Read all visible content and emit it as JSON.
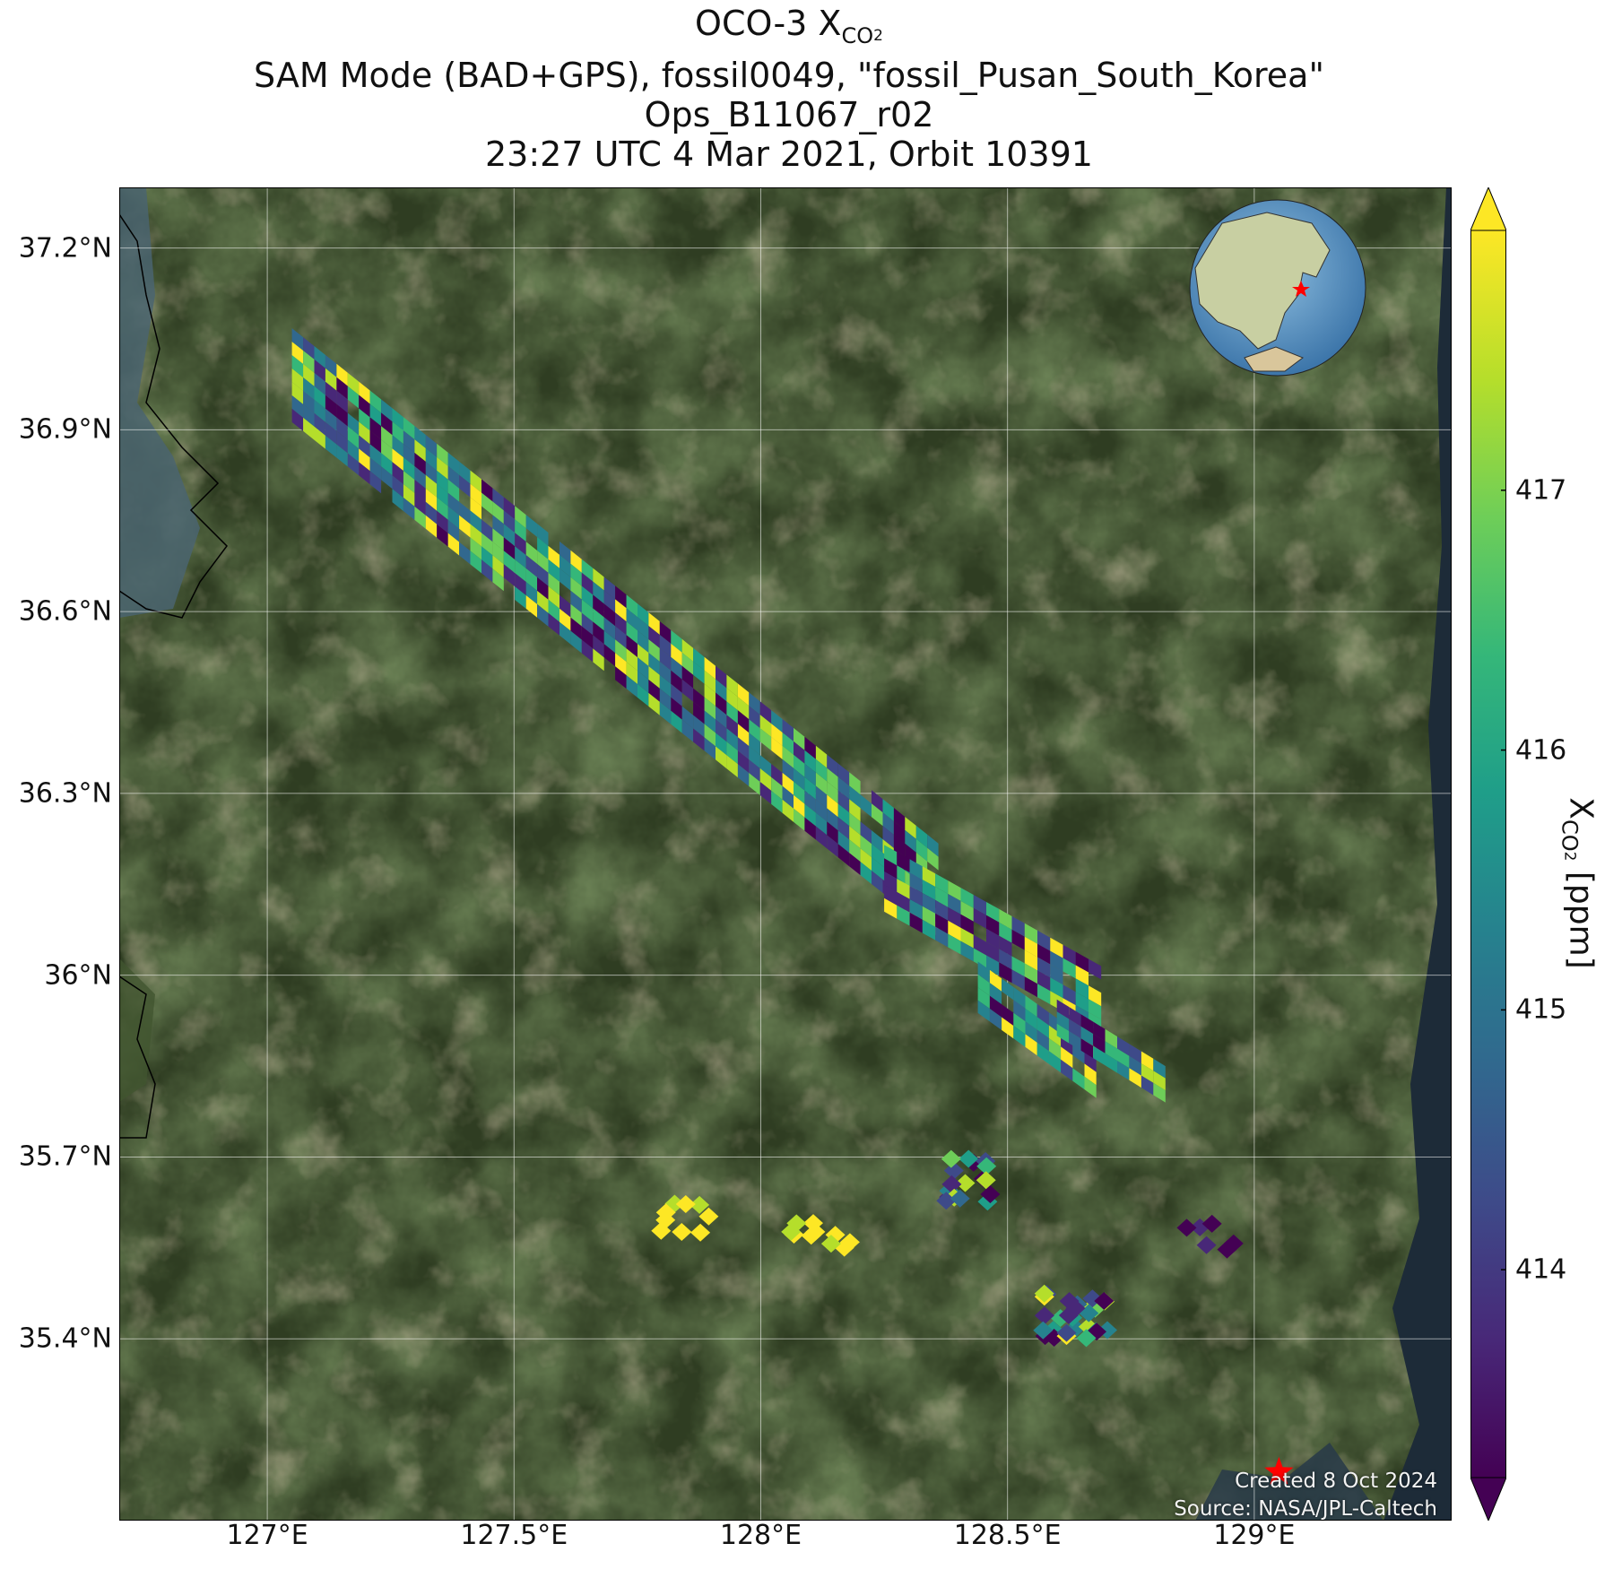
{
  "title": {
    "line1_prefix": "OCO-3 X",
    "line1_sub": "CO",
    "line1_sub2": "2",
    "line2": "SAM Mode (BAD+GPS), fossil0049, \"fossil_Pusan_South_Korea\"",
    "line3": "Ops_B11067_r02",
    "line4": "23:27 UTC 4 Mar 2021, Orbit 10391"
  },
  "map": {
    "lon_range": [
      126.7,
      129.4
    ],
    "lat_range": [
      35.1,
      37.3
    ],
    "lat_ticks": [
      {
        "value": 37.2,
        "label": "37.2°N"
      },
      {
        "value": 36.9,
        "label": "36.9°N"
      },
      {
        "value": 36.6,
        "label": "36.6°N"
      },
      {
        "value": 36.3,
        "label": "36.3°N"
      },
      {
        "value": 36.0,
        "label": "36°N"
      },
      {
        "value": 35.7,
        "label": "35.7°N"
      },
      {
        "value": 35.4,
        "label": "35.4°N"
      }
    ],
    "lon_ticks": [
      {
        "value": 127.0,
        "label": "127°E"
      },
      {
        "value": 127.5,
        "label": "127.5°E"
      },
      {
        "value": 128.0,
        "label": "128°E"
      },
      {
        "value": 128.5,
        "label": "128.5°E"
      },
      {
        "value": 129.0,
        "label": "129°E"
      }
    ],
    "target": {
      "name": "fossil_Pusan_South_Korea",
      "lon": 129.05,
      "lat": 35.18,
      "marker": "red-star"
    },
    "basemap": "satellite-imagery",
    "inset": "globe-locator-east-asia",
    "gridlines": true,
    "colors": {
      "land_dark": "#2c3a1e",
      "land_mid": "#3d4a2a",
      "urban": "#8a7a5a",
      "water": "#3e5a6a",
      "star": "#ff0000"
    }
  },
  "credits": {
    "created": "Created 8 Oct 2024",
    "source": "Source: NASA/JPL-Caltech"
  },
  "colorbar": {
    "colormap": "viridis",
    "range": [
      413.2,
      418.0
    ],
    "extend": "both",
    "ticks": [
      414,
      415,
      416,
      417
    ],
    "label_prefix": "X",
    "label_sub": "CO",
    "label_sub2": "2",
    "label_suffix": " [ppm]"
  },
  "swath": [
    {
      "start": [
        127.05,
        36.99
      ],
      "end": [
        128.36,
        36.14
      ],
      "width_lat": 0.155
    },
    {
      "start": [
        128.25,
        36.16
      ],
      "end": [
        128.69,
        35.96
      ],
      "width_lat": 0.11
    },
    {
      "start": [
        128.44,
        35.98
      ],
      "end": [
        128.68,
        35.84
      ],
      "width_lat": 0.085
    },
    {
      "start": [
        128.6,
        35.93
      ],
      "end": [
        128.82,
        35.82
      ],
      "width_lat": 0.06
    }
  ],
  "clusters": [
    {
      "lon": 128.4,
      "lat": 35.66,
      "dlon": 0.14,
      "dlat": 0.08,
      "n": 18,
      "bias": "mixed"
    },
    {
      "lon": 127.86,
      "lat": 35.6,
      "dlon": 0.14,
      "dlat": 0.05,
      "n": 9,
      "bias": "high"
    },
    {
      "lon": 128.14,
      "lat": 35.57,
      "dlon": 0.16,
      "dlat": 0.05,
      "n": 10,
      "bias": "high"
    },
    {
      "lon": 128.64,
      "lat": 35.44,
      "dlon": 0.14,
      "dlat": 0.08,
      "n": 28,
      "bias": "mixed"
    },
    {
      "lon": 128.91,
      "lat": 35.57,
      "dlon": 0.1,
      "dlat": 0.05,
      "n": 6,
      "bias": "low"
    }
  ]
}
